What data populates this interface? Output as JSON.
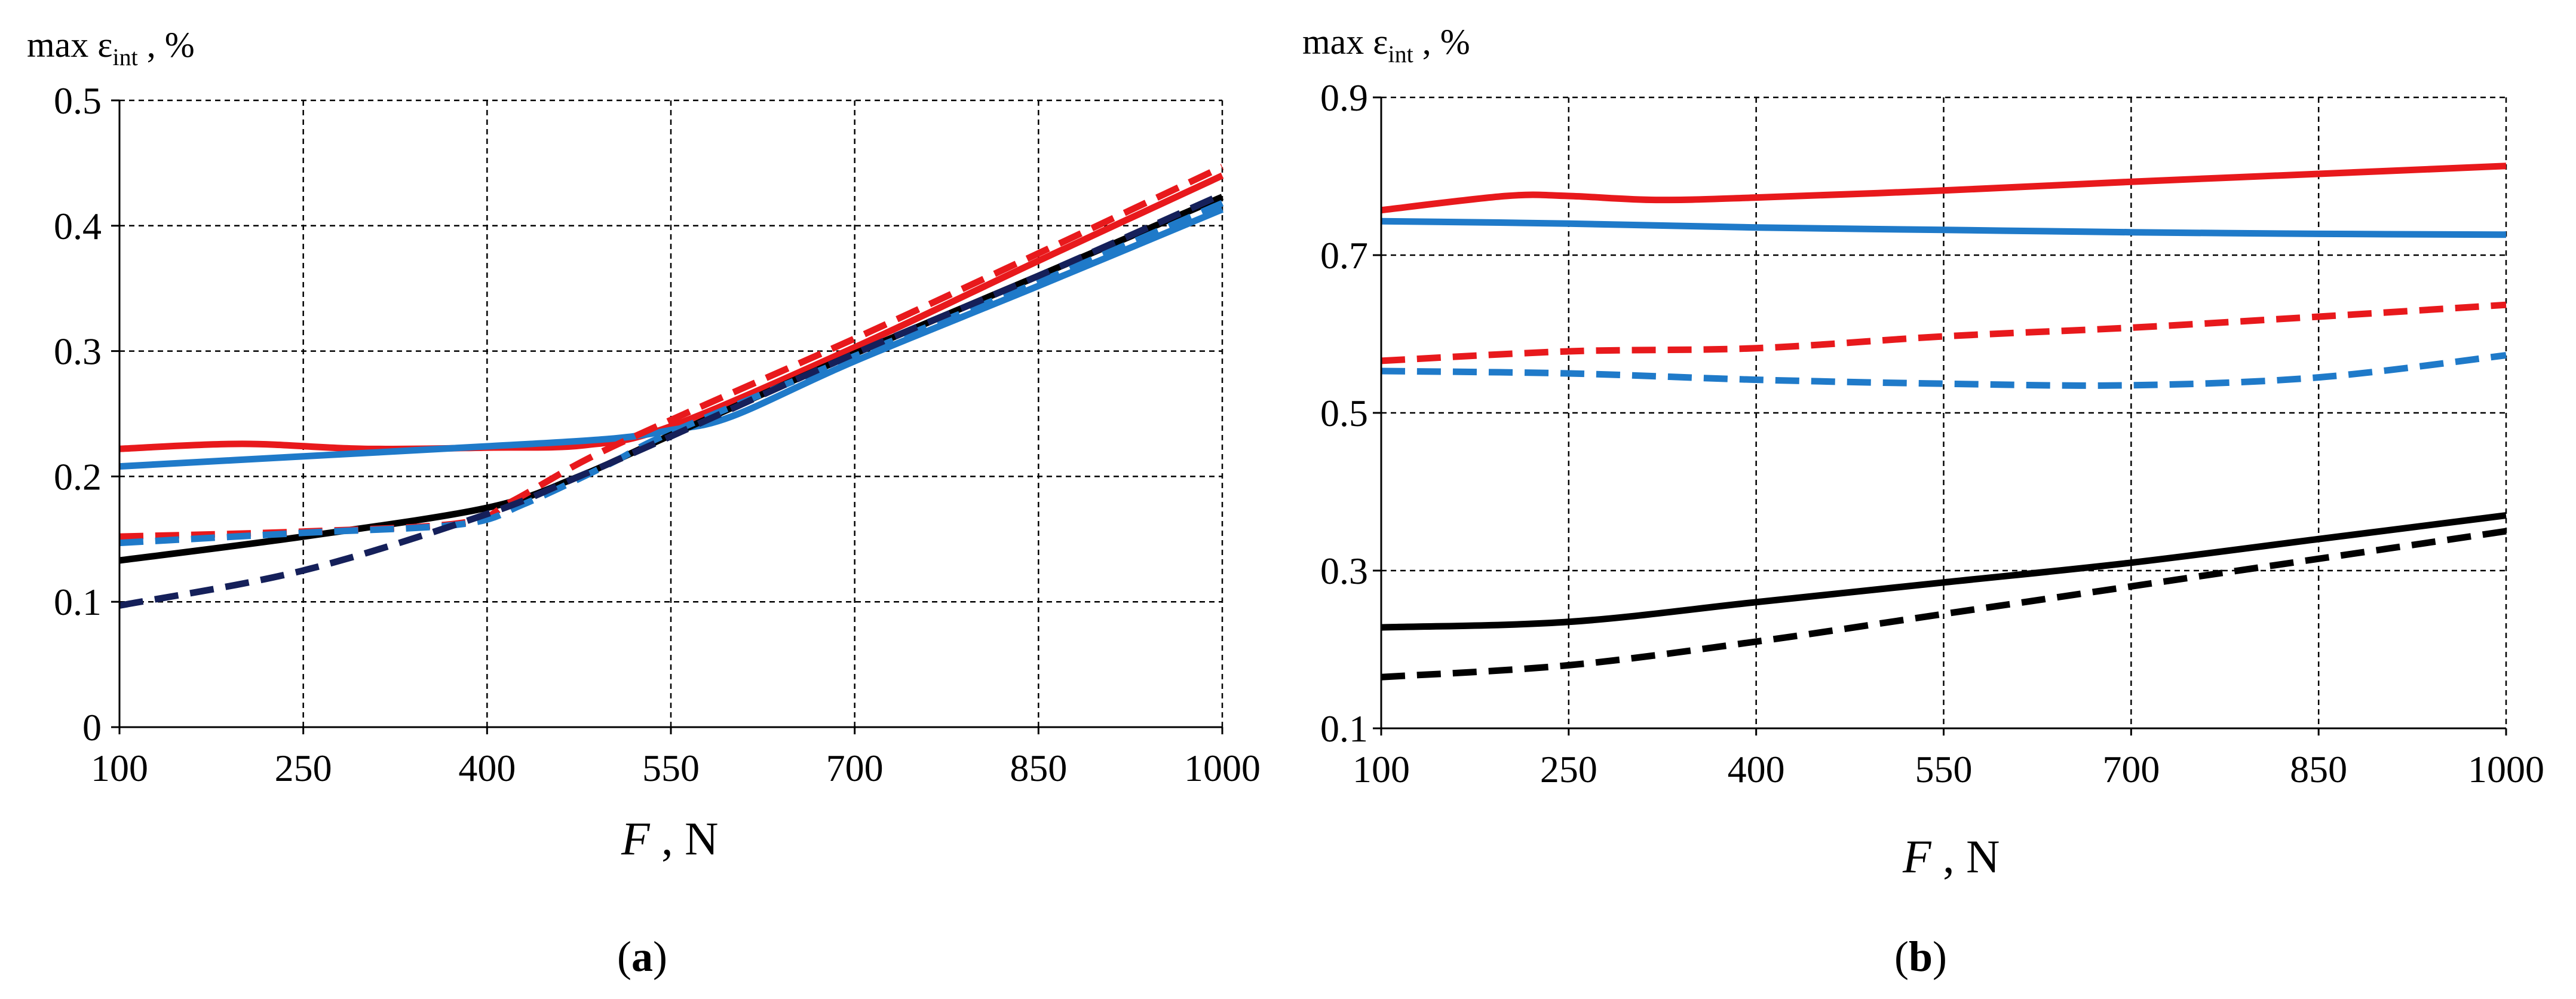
{
  "figure": {
    "panel_a_label": "a",
    "panel_b_label": "b"
  },
  "chart_data": [
    {
      "id": "a",
      "type": "line",
      "title": "",
      "ylabel": {
        "prefix": "max ε",
        "sub": "int",
        "suffix": " , %"
      },
      "xlabel": {
        "symbol": "F",
        "unit": " , N"
      },
      "xlim": [
        100,
        1000
      ],
      "ylim": [
        0,
        0.5
      ],
      "xticks": [
        100,
        250,
        400,
        550,
        700,
        850,
        1000
      ],
      "xtick_labels": [
        "100",
        "250",
        "400",
        "550",
        "700",
        "850",
        "1000"
      ],
      "yticks": [
        0,
        0.1,
        0.2,
        0.3,
        0.4,
        0.5
      ],
      "ytick_labels": [
        "0",
        "0.1",
        "0.2",
        "0.3",
        "0.4",
        "0.5"
      ],
      "grid": true,
      "series": [
        {
          "name": "red-solid",
          "color": "#e8191c",
          "dash": "solid",
          "x": [
            100,
            200,
            300,
            400,
            480,
            550,
            700,
            850,
            1000
          ],
          "y": [
            0.222,
            0.226,
            0.222,
            0.223,
            0.225,
            0.24,
            0.303,
            0.372,
            0.44
          ]
        },
        {
          "name": "blue-solid",
          "color": "#1f7ac9",
          "dash": "solid",
          "x": [
            100,
            250,
            400,
            500,
            550,
            600,
            700,
            850,
            1000
          ],
          "y": [
            0.208,
            0.216,
            0.224,
            0.23,
            0.237,
            0.248,
            0.292,
            0.352,
            0.413
          ]
        },
        {
          "name": "black-solid",
          "color": "#000000",
          "dash": "solid",
          "x": [
            100,
            250,
            400,
            475,
            550,
            700,
            850,
            1000
          ],
          "y": [
            0.133,
            0.152,
            0.175,
            0.2,
            0.233,
            0.298,
            0.36,
            0.423
          ]
        },
        {
          "name": "red-dashed",
          "color": "#e8191c",
          "dash": "dashed",
          "x": [
            100,
            250,
            380,
            420,
            480,
            550,
            700,
            850,
            1000
          ],
          "y": [
            0.152,
            0.156,
            0.163,
            0.18,
            0.213,
            0.245,
            0.31,
            0.378,
            0.447
          ]
        },
        {
          "name": "blue-dashed",
          "color": "#1f7ac9",
          "dash": "dashed",
          "x": [
            100,
            250,
            380,
            430,
            500,
            550,
            700,
            850,
            1000
          ],
          "y": [
            0.147,
            0.155,
            0.162,
            0.178,
            0.21,
            0.235,
            0.296,
            0.355,
            0.418
          ]
        },
        {
          "name": "navy-dashed",
          "color": "#15205a",
          "dash": "dashed",
          "x": [
            100,
            250,
            400,
            475,
            550,
            700,
            850,
            1000
          ],
          "y": [
            0.097,
            0.125,
            0.17,
            0.2,
            0.232,
            0.298,
            0.36,
            0.425
          ]
        }
      ]
    },
    {
      "id": "b",
      "type": "line",
      "title": "",
      "ylabel": {
        "prefix": "max ε",
        "sub": "int",
        "suffix": " , %"
      },
      "xlabel": {
        "symbol": "F",
        "unit": " , N"
      },
      "xlim": [
        100,
        1000
      ],
      "ylim": [
        0.1,
        0.9
      ],
      "xticks": [
        100,
        250,
        400,
        550,
        700,
        850,
        1000
      ],
      "xtick_labels": [
        "100",
        "250",
        "400",
        "550",
        "700",
        "850",
        "1000"
      ],
      "yticks": [
        0.1,
        0.3,
        0.5,
        0.7,
        0.9
      ],
      "ytick_labels": [
        "0.1",
        "0.3",
        "0.5",
        "0.7",
        "0.9"
      ],
      "grid": true,
      "series": [
        {
          "name": "red-solid",
          "color": "#e8191c",
          "dash": "solid",
          "x": [
            100,
            200,
            250,
            320,
            400,
            550,
            700,
            850,
            1000
          ],
          "y": [
            0.757,
            0.775,
            0.775,
            0.77,
            0.773,
            0.782,
            0.793,
            0.803,
            0.813
          ]
        },
        {
          "name": "blue-solid",
          "color": "#1f7ac9",
          "dash": "solid",
          "x": [
            100,
            250,
            400,
            550,
            700,
            850,
            1000
          ],
          "y": [
            0.743,
            0.74,
            0.735,
            0.732,
            0.729,
            0.727,
            0.726
          ]
        },
        {
          "name": "red-dashed",
          "color": "#e8191c",
          "dash": "dashed",
          "x": [
            100,
            250,
            400,
            550,
            700,
            850,
            1000
          ],
          "y": [
            0.566,
            0.578,
            0.582,
            0.597,
            0.608,
            0.622,
            0.637
          ]
        },
        {
          "name": "blue-dashed",
          "color": "#1f7ac9",
          "dash": "dashed",
          "x": [
            100,
            250,
            400,
            550,
            700,
            850,
            1000
          ],
          "y": [
            0.553,
            0.55,
            0.542,
            0.537,
            0.535,
            0.545,
            0.573
          ]
        },
        {
          "name": "black-solid",
          "color": "#000000",
          "dash": "solid",
          "x": [
            100,
            250,
            400,
            550,
            700,
            850,
            1000
          ],
          "y": [
            0.228,
            0.235,
            0.26,
            0.285,
            0.31,
            0.34,
            0.37
          ]
        },
        {
          "name": "black-dashed",
          "color": "#000000",
          "dash": "dashed",
          "x": [
            100,
            250,
            400,
            550,
            700,
            850,
            1000
          ],
          "y": [
            0.165,
            0.18,
            0.21,
            0.245,
            0.28,
            0.315,
            0.35
          ]
        }
      ]
    }
  ]
}
